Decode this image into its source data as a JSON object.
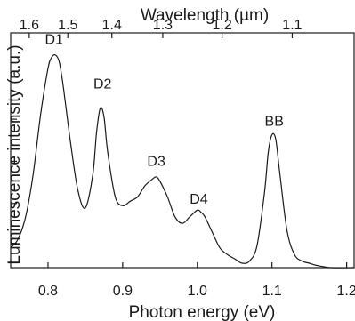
{
  "chart_data": {
    "type": "line",
    "xlabel": "Photon energy (eV)",
    "ylabel": "Luminescence intensity (a.u.)",
    "top_xlabel": "Wavelength (µm)",
    "xlim": [
      0.75,
      1.21
    ],
    "ylim": [
      0,
      1.06
    ],
    "grid": false,
    "line_color": "#1a1a1a",
    "x_ticks": [
      {
        "value": 0.8,
        "label": "0.8"
      },
      {
        "value": 0.9,
        "label": "0.9"
      },
      {
        "value": 1.0,
        "label": "1.0"
      },
      {
        "value": 1.1,
        "label": "1.1"
      },
      {
        "value": 1.2,
        "label": "1.2"
      }
    ],
    "top_ticks": [
      {
        "value": 1.6,
        "label": "1.6"
      },
      {
        "value": 1.5,
        "label": "1.5"
      },
      {
        "value": 1.4,
        "label": "1.4"
      },
      {
        "value": 1.3,
        "label": "1.3"
      },
      {
        "value": 1.2,
        "label": "1.2"
      },
      {
        "value": 1.1,
        "label": "1.1"
      }
    ],
    "y_ticks": [
      0.11,
      0.29,
      0.48,
      0.67,
      0.86
    ],
    "annotations": [
      {
        "text": "D1",
        "x": 0.808,
        "y": 1.01
      },
      {
        "text": "D2",
        "x": 0.873,
        "y": 0.81
      },
      {
        "text": "D3",
        "x": 0.945,
        "y": 0.46
      },
      {
        "text": "D4",
        "x": 1.002,
        "y": 0.29
      },
      {
        "text": "BB",
        "x": 1.103,
        "y": 0.64
      }
    ],
    "series": [
      {
        "x": [
          0.75,
          0.76,
          0.77,
          0.78,
          0.79,
          0.8,
          0.805,
          0.81,
          0.815,
          0.82,
          0.83,
          0.84,
          0.85,
          0.86,
          0.865,
          0.87,
          0.875,
          0.88,
          0.89,
          0.9,
          0.91,
          0.92,
          0.93,
          0.94,
          0.945,
          0.95,
          0.96,
          0.97,
          0.98,
          0.99,
          1.0,
          1.005,
          1.01,
          1.02,
          1.03,
          1.04,
          1.05,
          1.06,
          1.07,
          1.08,
          1.09,
          1.095,
          1.1,
          1.105,
          1.11,
          1.12,
          1.13,
          1.14,
          1.15,
          1.16,
          1.18,
          1.21
        ],
        "y": [
          0.09,
          0.13,
          0.23,
          0.42,
          0.69,
          0.9,
          0.95,
          0.96,
          0.93,
          0.83,
          0.57,
          0.35,
          0.27,
          0.42,
          0.61,
          0.72,
          0.68,
          0.52,
          0.32,
          0.28,
          0.3,
          0.32,
          0.37,
          0.4,
          0.41,
          0.39,
          0.32,
          0.23,
          0.2,
          0.23,
          0.26,
          0.25,
          0.23,
          0.16,
          0.09,
          0.06,
          0.04,
          0.02,
          0.03,
          0.1,
          0.34,
          0.52,
          0.6,
          0.58,
          0.44,
          0.17,
          0.06,
          0.03,
          0.02,
          0.01,
          0.0,
          0.0
        ]
      }
    ]
  }
}
